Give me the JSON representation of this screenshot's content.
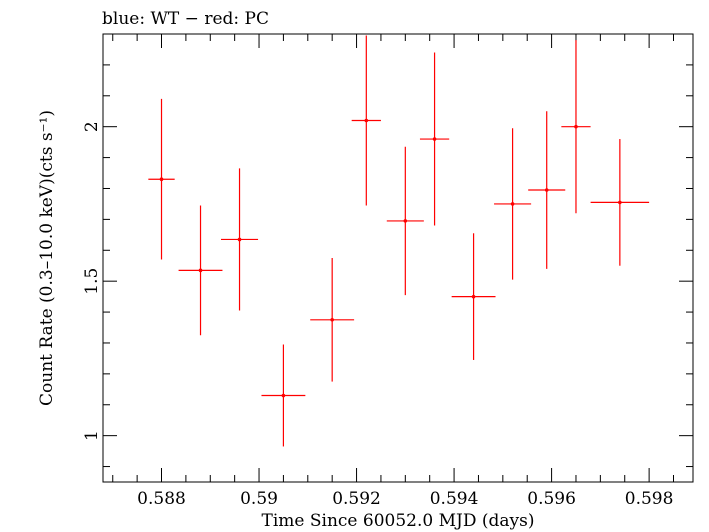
{
  "chart_data": {
    "type": "scatter",
    "title": "blue: WT − red: PC",
    "xlabel": "Time Since 60052.0 MJD (days)",
    "ylabel": "Count Rate (0.3–10.0 keV)(cts s⁻¹)",
    "xlim": [
      0.5868,
      0.5989
    ],
    "ylim": [
      0.85,
      2.3
    ],
    "xticks": [
      0.588,
      0.59,
      0.592,
      0.594,
      0.596,
      0.598
    ],
    "xtick_labels": [
      "0.588",
      "0.59",
      "0.592",
      "0.594",
      "0.596",
      "0.598"
    ],
    "yticks": [
      1.0,
      1.5,
      2.0
    ],
    "ytick_labels": [
      "1",
      "1.5",
      "2"
    ],
    "grid": false,
    "series": [
      {
        "name": "PC",
        "color": "#ff0000",
        "points": [
          {
            "x": 0.588,
            "xerr": 0.00027,
            "y": 1.83,
            "yerr": 0.26
          },
          {
            "x": 0.5888,
            "xerr": 0.00045,
            "y": 1.535,
            "yerr": 0.21
          },
          {
            "x": 0.5896,
            "xerr": 0.00038,
            "y": 1.635,
            "yerr": 0.23
          },
          {
            "x": 0.5905,
            "xerr": 0.00045,
            "y": 1.13,
            "yerr": 0.165
          },
          {
            "x": 0.5915,
            "xerr": 0.00045,
            "y": 1.375,
            "yerr": 0.2
          },
          {
            "x": 0.5922,
            "xerr": 0.0003,
            "y": 2.02,
            "yerr": 0.275
          },
          {
            "x": 0.593,
            "xerr": 0.00038,
            "y": 1.695,
            "yerr": 0.24
          },
          {
            "x": 0.5936,
            "xerr": 0.0003,
            "y": 1.96,
            "yerr": 0.28
          },
          {
            "x": 0.5944,
            "xerr": 0.00045,
            "y": 1.45,
            "yerr": 0.205
          },
          {
            "x": 0.5952,
            "xerr": 0.00038,
            "y": 1.75,
            "yerr": 0.245
          },
          {
            "x": 0.5959,
            "xerr": 0.00038,
            "y": 1.795,
            "yerr": 0.255
          },
          {
            "x": 0.5965,
            "xerr": 0.0003,
            "y": 2.0,
            "yerr": 0.28
          },
          {
            "x": 0.5974,
            "xerr": 0.0006,
            "y": 1.755,
            "yerr": 0.205
          }
        ]
      }
    ]
  }
}
